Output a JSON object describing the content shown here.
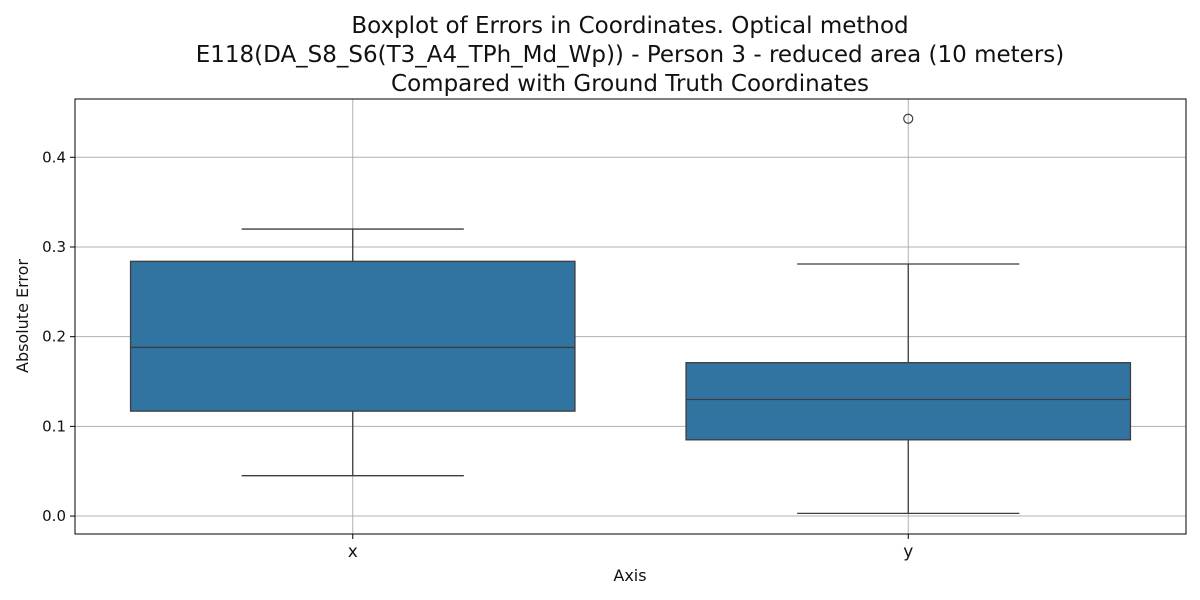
{
  "chart_data": {
    "type": "box",
    "title_lines": [
      "Boxplot of Errors in Coordinates. Optical method",
      "E118(DA_S8_S6(T3_A4_TPh_Md_Wp)) - Person 3 - reduced area (10 meters)",
      "Compared with Ground Truth Coordinates"
    ],
    "xlabel": "Axis",
    "ylabel": "Absolute Error",
    "categories": [
      "x",
      "y"
    ],
    "ylim": [
      -0.02,
      0.465
    ],
    "yticks": [
      0.0,
      0.1,
      0.2,
      0.3,
      0.4
    ],
    "ytick_labels": [
      "0.0",
      "0.1",
      "0.2",
      "0.3",
      "0.4"
    ],
    "grid": true,
    "boxes": [
      {
        "category": "x",
        "whisker_low": 0.045,
        "q1": 0.117,
        "median": 0.188,
        "q3": 0.284,
        "whisker_high": 0.32,
        "outliers": []
      },
      {
        "category": "y",
        "whisker_low": 0.003,
        "q1": 0.085,
        "median": 0.13,
        "q3": 0.171,
        "whisker_high": 0.281,
        "outliers": [
          0.443
        ]
      }
    ],
    "colors": {
      "box_fill": "#3274a1",
      "box_edge": "#3d3d3d",
      "grid": "#b0b0b0",
      "axis": "#000000"
    }
  }
}
